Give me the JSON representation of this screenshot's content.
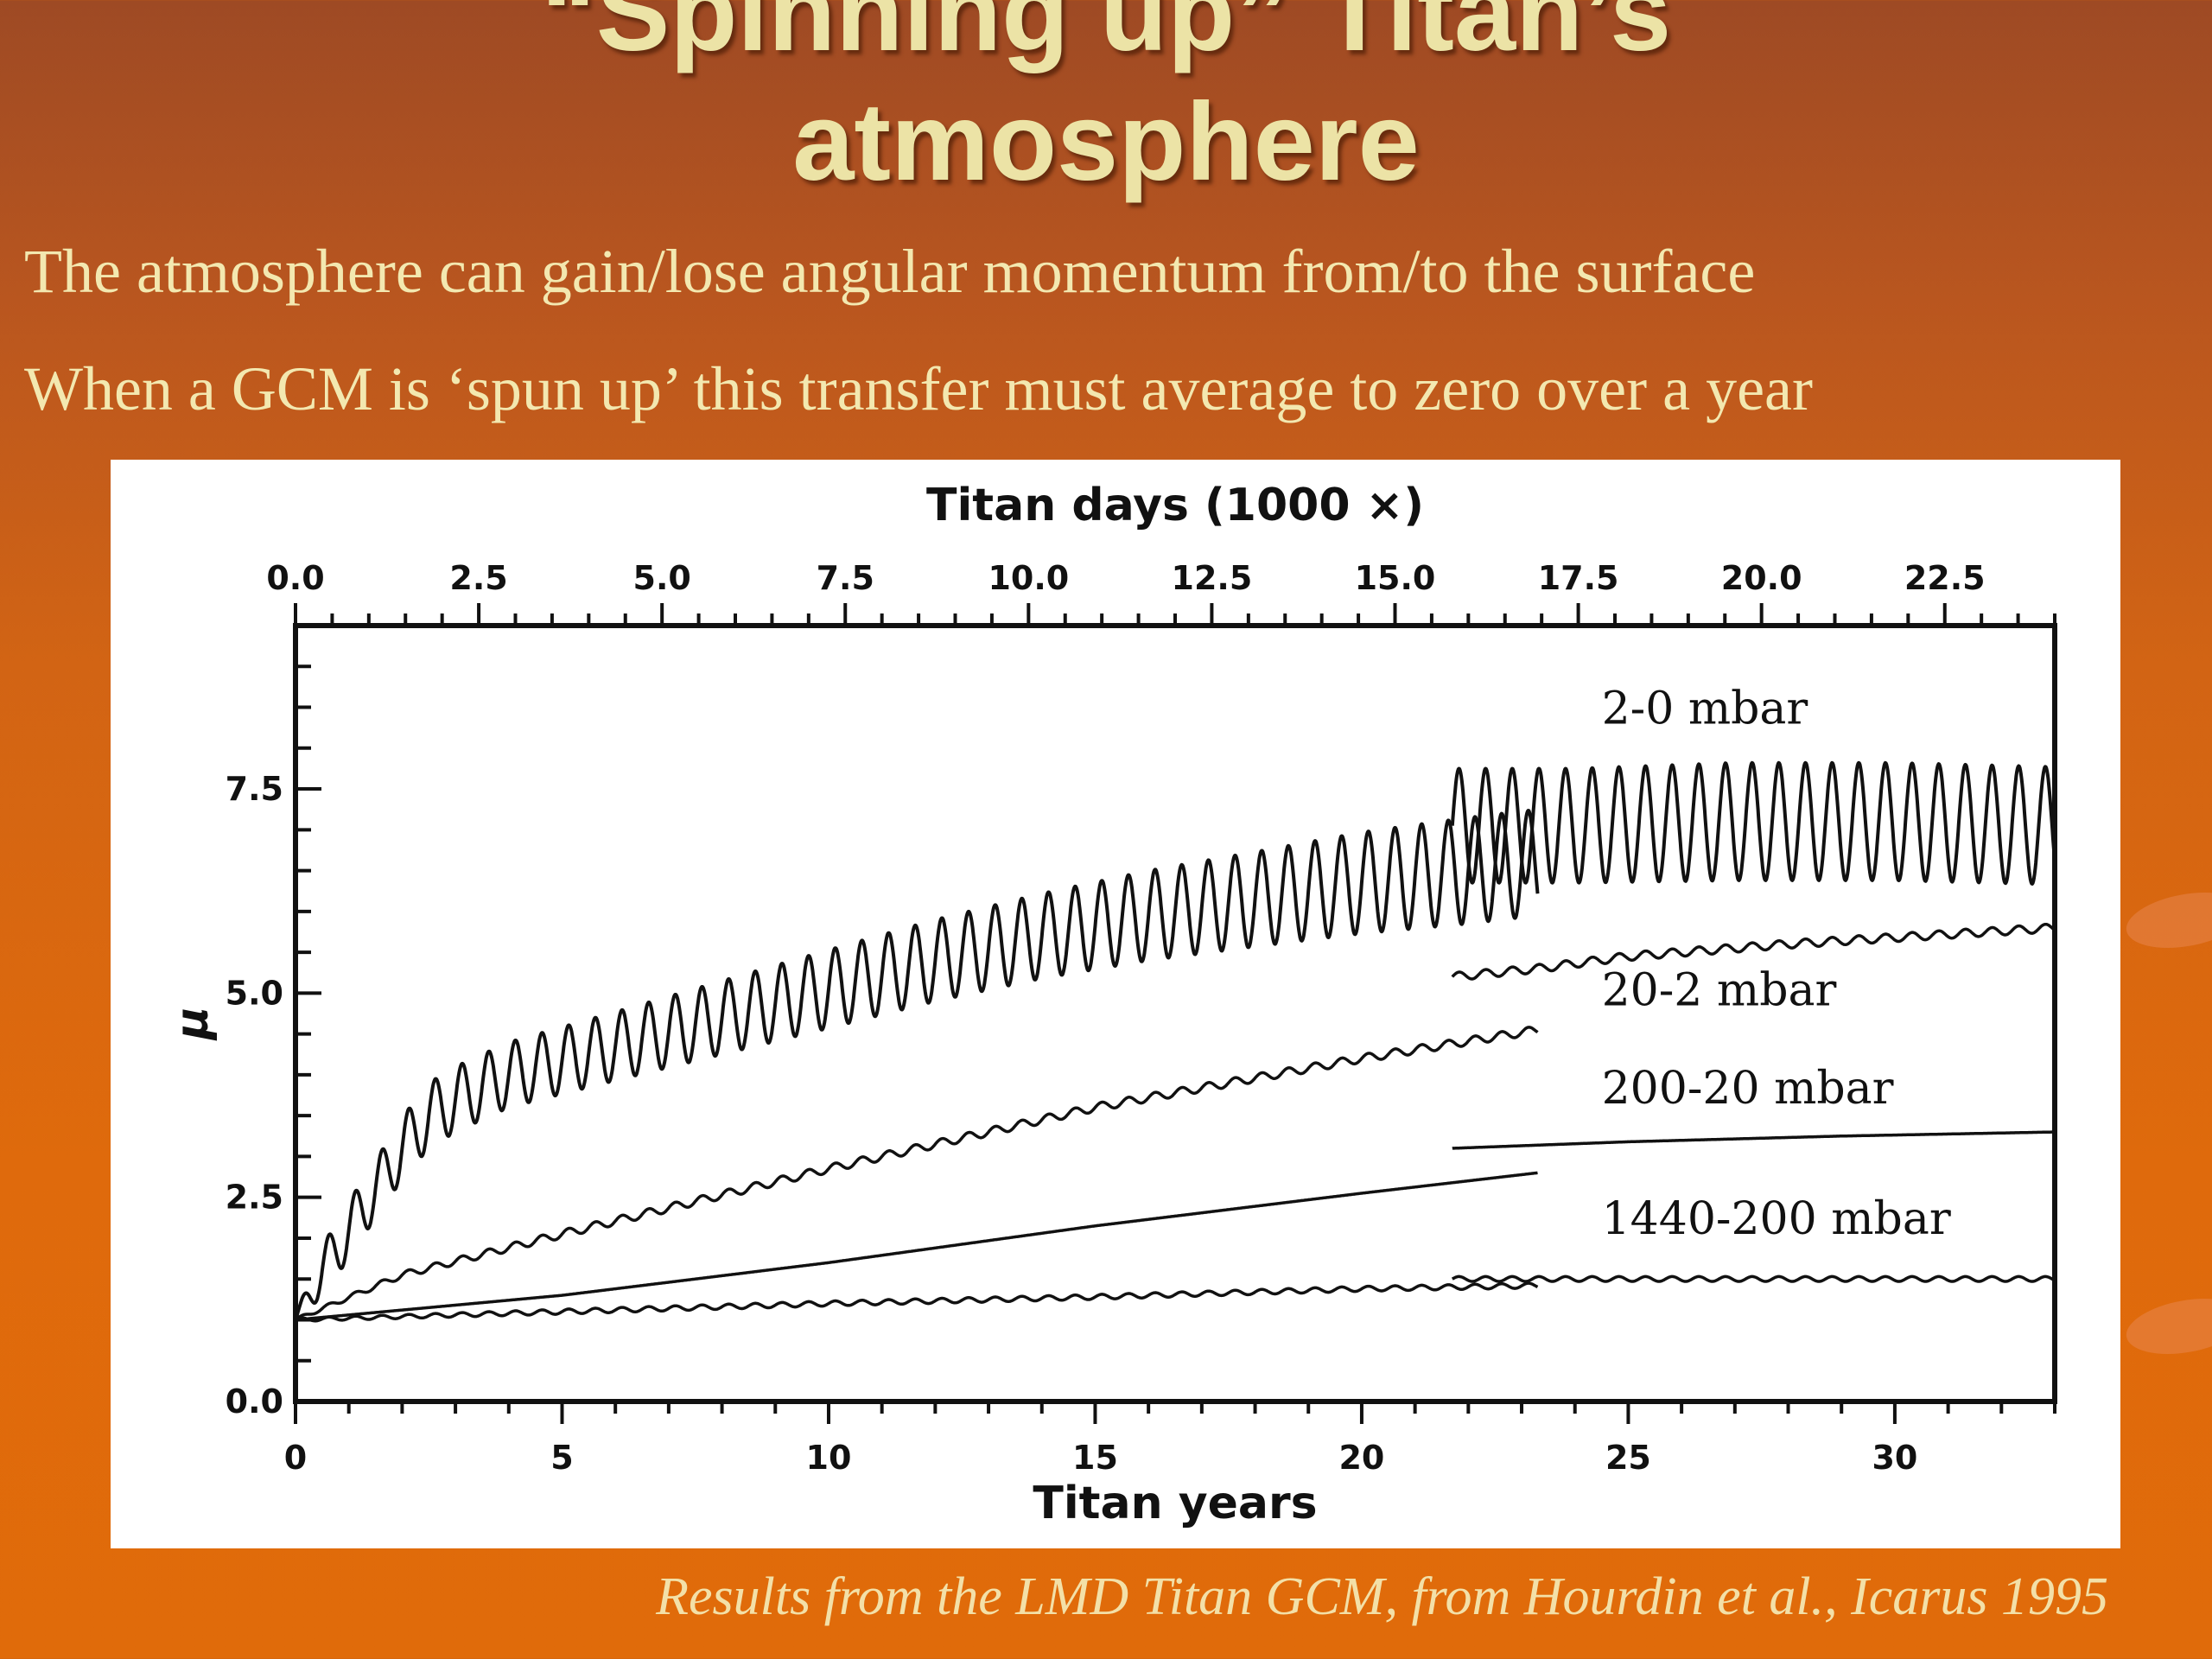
{
  "slide": {
    "title_line1": "“Spinning up” Titan’s",
    "title_line2": "atmosphere",
    "bullets": [
      "The atmosphere can gain/lose angular momentum from/to the surface",
      "When a GCM is ‘spun up’ this transfer must average to zero over a year"
    ],
    "caption": "Results from the LMD Titan GCM, from Hourdin et al., Icarus 1995",
    "colors": {
      "title": "#ece3a6",
      "text": "#f3e8b0",
      "background": "#df6a0c"
    }
  },
  "chart_data": {
    "type": "line",
    "title": "",
    "xlabel": "Titan years",
    "x2label": "Titan days (1000 ×)",
    "ylabel": "μ",
    "xlim": [
      0,
      33
    ],
    "ylim": [
      0,
      9.5
    ],
    "x2lim": [
      0,
      24
    ],
    "x_ticks": [
      0,
      5,
      10,
      15,
      20,
      25,
      30
    ],
    "x_tick_labels": [
      "0",
      "5",
      "10",
      "15",
      "20",
      "25",
      "30"
    ],
    "x2_ticks": [
      0,
      2.5,
      5,
      7.5,
      10,
      12.5,
      15,
      17.5,
      20,
      22.5
    ],
    "x2_tick_labels": [
      "0.0",
      "2.5",
      "5.0",
      "7.5",
      "10.0",
      "12.5",
      "15.0",
      "17.5",
      "20.0",
      "22.5"
    ],
    "y_ticks": [
      0,
      2.5,
      5,
      7.5
    ],
    "y_tick_labels": [
      "0.0",
      "2.5",
      "5.0",
      "7.5"
    ],
    "grid": false,
    "legend": "none",
    "series": [
      {
        "name": "2-0 mbar",
        "label_at": [
          24.5,
          8.3
        ],
        "segments": [
          {
            "x": [
              0,
              0.5,
              1,
              1.5,
              2,
              2.5,
              3,
              4,
              6,
              8,
              10,
              12,
              14,
              16,
              18,
              20,
              22,
              23.3
            ],
            "y": [
              1.0,
              1.6,
              2.1,
              2.6,
              3.1,
              3.5,
              3.7,
              4.0,
              4.35,
              4.7,
              5.05,
              5.4,
              5.7,
              5.95,
              6.15,
              6.35,
              6.5,
              6.6
            ],
            "oscillation_amplitude": [
              0.05,
              0.3,
              0.35,
              0.35,
              0.38,
              0.4,
              0.4,
              0.4,
              0.42,
              0.45,
              0.48,
              0.5,
              0.52,
              0.55,
              0.58,
              0.62,
              0.65,
              0.65
            ],
            "period_years": 0.5
          },
          {
            "x": [
              21.7,
              24,
              27,
              30,
              33
            ],
            "y": [
              7.05,
              7.05,
              7.1,
              7.1,
              7.05
            ],
            "oscillation_amplitude": [
              0.7,
              0.7,
              0.72,
              0.72,
              0.72
            ],
            "period_years": 0.5
          }
        ]
      },
      {
        "name": "20-2 mbar",
        "label_at": [
          24.5,
          4.85
        ],
        "segments": [
          {
            "x": [
              0,
              2,
              5,
              10,
              15,
              20,
              23.3
            ],
            "y": [
              1.0,
              1.55,
              2.05,
              2.85,
              3.6,
              4.2,
              4.55
            ],
            "oscillation_amplitude": [
              0.02,
              0.04,
              0.05,
              0.05,
              0.05,
              0.05,
              0.05
            ],
            "period_years": 0.5
          },
          {
            "x": [
              21.7,
              23.3,
              25,
              28,
              31,
              33
            ],
            "y": [
              5.2,
              5.3,
              5.45,
              5.6,
              5.72,
              5.8
            ],
            "oscillation_amplitude": [
              0.05,
              0.05,
              0.05,
              0.05,
              0.05,
              0.05
            ],
            "period_years": 0.5
          }
        ]
      },
      {
        "name": "200-20 mbar",
        "label_at": [
          24.5,
          3.65
        ],
        "segments": [
          {
            "x": [
              0,
              5,
              10,
              15,
              20,
              23.3
            ],
            "y": [
              1.0,
              1.3,
              1.7,
              2.15,
              2.55,
              2.8
            ],
            "oscillation_amplitude": [
              0,
              0,
              0,
              0,
              0,
              0
            ],
            "period_years": 0.5
          },
          {
            "x": [
              21.7,
              25,
              29,
              33
            ],
            "y": [
              3.1,
              3.18,
              3.25,
              3.3
            ],
            "oscillation_amplitude": [
              0,
              0,
              0,
              0
            ],
            "period_years": 0.5
          }
        ]
      },
      {
        "name": "1440-200 mbar",
        "label_at": [
          24.5,
          2.05
        ],
        "segments": [
          {
            "x": [
              0,
              5,
              10,
              15,
              20,
              23.3
            ],
            "y": [
              1.0,
              1.1,
              1.2,
              1.28,
              1.38,
              1.42
            ],
            "oscillation_amplitude": [
              0.02,
              0.03,
              0.03,
              0.03,
              0.03,
              0.03
            ],
            "period_years": 0.5
          },
          {
            "x": [
              21.7,
              25,
              29,
              33
            ],
            "y": [
              1.5,
              1.5,
              1.5,
              1.5
            ],
            "oscillation_amplitude": [
              0.03,
              0.03,
              0.03,
              0.03
            ],
            "period_years": 0.5
          }
        ]
      }
    ]
  }
}
